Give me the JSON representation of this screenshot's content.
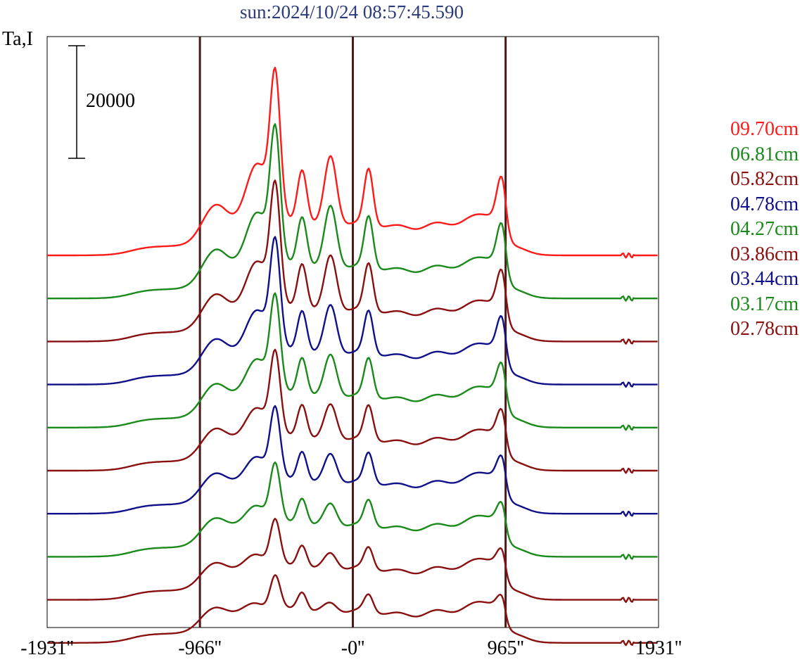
{
  "chart_data": {
    "type": "line",
    "title": "sun:2024/10/24 08:57:45.590",
    "ylabel": "Ta,I",
    "scale_bar_label": "20000",
    "scale_bar_value": 20000,
    "x_ticks": [
      {
        "value": -1931,
        "label": "-1931''"
      },
      {
        "value": -966,
        "label": "-966''"
      },
      {
        "value": 0,
        "label": "-0''"
      },
      {
        "value": 965,
        "label": "965''"
      },
      {
        "value": 1931,
        "label": "1931''"
      }
    ],
    "vertical_markers": [
      -966,
      0,
      965
    ],
    "xlim": [
      -1931,
      1931
    ],
    "series": [
      {
        "name": "09.70cm",
        "color": "#ff1a1a",
        "baseline_index": 0
      },
      {
        "name": "06.81cm",
        "color": "#1a8a1a",
        "baseline_index": 1
      },
      {
        "name": "05.82cm",
        "color": "#8a1010",
        "baseline_index": 2
      },
      {
        "name": "04.78cm",
        "color": "#10108a",
        "baseline_index": 3
      },
      {
        "name": "04.27cm",
        "color": "#1a8a1a",
        "baseline_index": 4
      },
      {
        "name": "03.86cm",
        "color": "#8a1010",
        "baseline_index": 5
      },
      {
        "name": "03.44cm",
        "color": "#10108a",
        "baseline_index": 6
      },
      {
        "name": "03.17cm",
        "color": "#1a8a1a",
        "baseline_index": 7
      },
      {
        "name": "02.78cm",
        "color": "#8a1010",
        "baseline_index": 8
      }
    ],
    "extra_trace": {
      "color": "#8a1010",
      "baseline_index": 9
    }
  }
}
